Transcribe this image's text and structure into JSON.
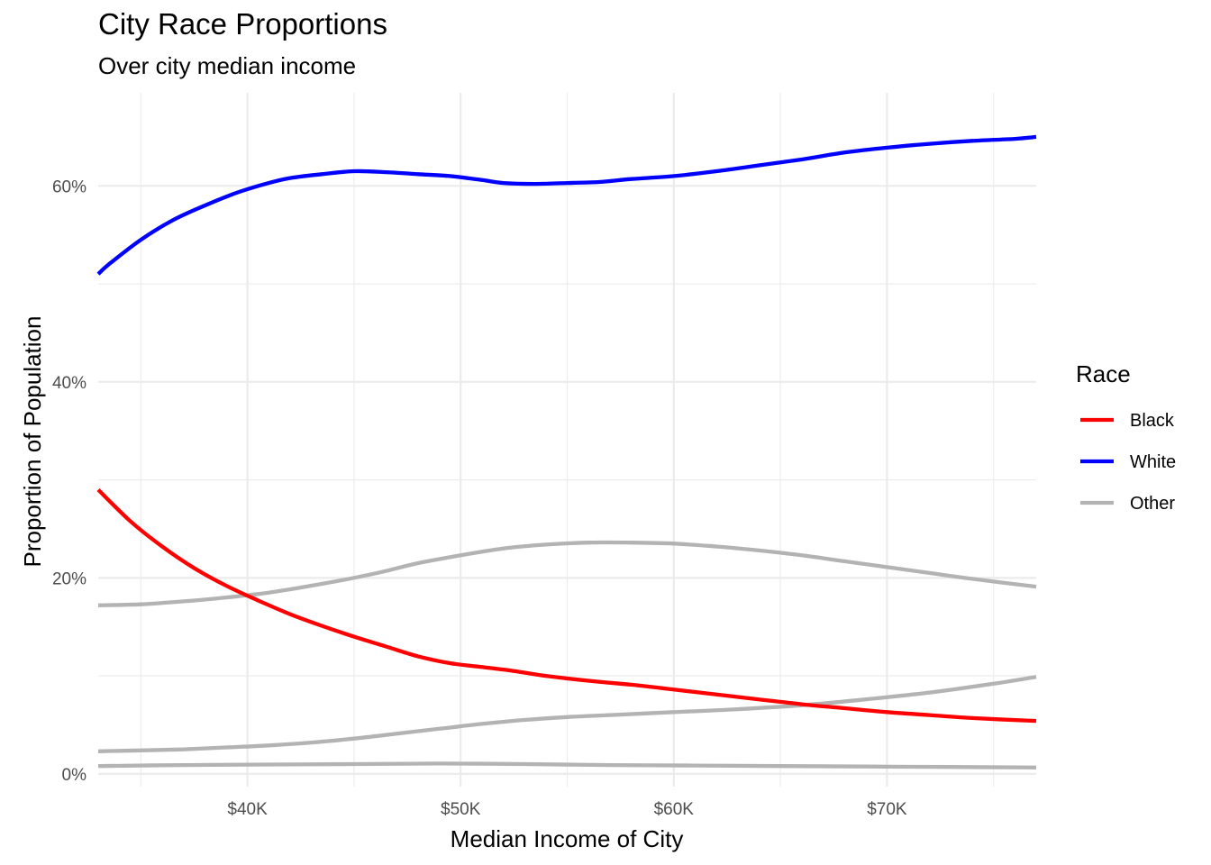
{
  "chart_data": {
    "type": "line",
    "title": "City Race Proportions",
    "subtitle": "Over city median income",
    "xlabel": "Median Income of City",
    "ylabel": "Proportion of Population",
    "xlim": [
      33000,
      77000
    ],
    "ylim": [
      -1.3,
      69.5
    ],
    "x_ticks": [
      40000,
      50000,
      60000,
      70000
    ],
    "x_tick_labels": [
      "$40K",
      "$50K",
      "$60K",
      "$70K"
    ],
    "y_ticks": [
      0,
      20,
      40,
      60
    ],
    "y_tick_labels": [
      "0%",
      "20%",
      "40%",
      "60%"
    ],
    "grid": true,
    "legend": {
      "title": "Race",
      "position": "right"
    },
    "colors": {
      "Black": "#ff0000",
      "White": "#0000ff",
      "Other": "#b3b3b3"
    },
    "series": [
      {
        "name": "White",
        "color": "#0000ff",
        "points": [
          [
            33000,
            51.0
          ],
          [
            33500,
            52.0
          ],
          [
            35000,
            54.5
          ],
          [
            36500,
            56.5
          ],
          [
            38000,
            58.0
          ],
          [
            39500,
            59.3
          ],
          [
            41000,
            60.3
          ],
          [
            42000,
            60.8
          ],
          [
            43500,
            61.2
          ],
          [
            45000,
            61.5
          ],
          [
            46500,
            61.4
          ],
          [
            48000,
            61.2
          ],
          [
            49500,
            61.0
          ],
          [
            51000,
            60.6
          ],
          [
            52000,
            60.3
          ],
          [
            53500,
            60.2
          ],
          [
            55000,
            60.3
          ],
          [
            56500,
            60.4
          ],
          [
            58000,
            60.7
          ],
          [
            60000,
            61.0
          ],
          [
            62000,
            61.5
          ],
          [
            64000,
            62.1
          ],
          [
            66000,
            62.7
          ],
          [
            68000,
            63.4
          ],
          [
            70000,
            63.9
          ],
          [
            72000,
            64.3
          ],
          [
            74000,
            64.6
          ],
          [
            76000,
            64.8
          ],
          [
            77000,
            65.0
          ]
        ]
      },
      {
        "name": "Black",
        "color": "#ff0000",
        "points": [
          [
            33000,
            29.0
          ],
          [
            34500,
            25.8
          ],
          [
            36000,
            23.2
          ],
          [
            37500,
            21.0
          ],
          [
            39000,
            19.2
          ],
          [
            40500,
            17.7
          ],
          [
            42000,
            16.3
          ],
          [
            43500,
            15.1
          ],
          [
            45000,
            14.0
          ],
          [
            46500,
            13.0
          ],
          [
            48000,
            12.0
          ],
          [
            49500,
            11.3
          ],
          [
            51000,
            10.9
          ],
          [
            52500,
            10.5
          ],
          [
            54000,
            10.0
          ],
          [
            56000,
            9.5
          ],
          [
            58000,
            9.1
          ],
          [
            60000,
            8.6
          ],
          [
            62000,
            8.1
          ],
          [
            64000,
            7.6
          ],
          [
            66000,
            7.1
          ],
          [
            68000,
            6.7
          ],
          [
            70000,
            6.3
          ],
          [
            72000,
            6.0
          ],
          [
            74000,
            5.7
          ],
          [
            77000,
            5.4
          ]
        ]
      },
      {
        "color": "#b3b3b3",
        "points": [
          [
            33000,
            17.2
          ],
          [
            35000,
            17.3
          ],
          [
            37000,
            17.6
          ],
          [
            39000,
            18.0
          ],
          [
            41000,
            18.5
          ],
          [
            43000,
            19.2
          ],
          [
            45000,
            20.0
          ],
          [
            46500,
            20.7
          ],
          [
            48000,
            21.5
          ],
          [
            50000,
            22.3
          ],
          [
            52000,
            23.0
          ],
          [
            54000,
            23.4
          ],
          [
            56000,
            23.6
          ],
          [
            58000,
            23.6
          ],
          [
            60000,
            23.5
          ],
          [
            62000,
            23.2
          ],
          [
            64000,
            22.8
          ],
          [
            66000,
            22.3
          ],
          [
            68000,
            21.7
          ],
          [
            70000,
            21.1
          ],
          [
            72000,
            20.5
          ],
          [
            74000,
            19.9
          ],
          [
            77000,
            19.1
          ]
        ]
      },
      {
        "color": "#b3b3b3",
        "points": [
          [
            33000,
            2.3
          ],
          [
            35000,
            2.4
          ],
          [
            37000,
            2.5
          ],
          [
            39000,
            2.7
          ],
          [
            41000,
            2.9
          ],
          [
            43000,
            3.2
          ],
          [
            45000,
            3.6
          ],
          [
            47000,
            4.1
          ],
          [
            49000,
            4.6
          ],
          [
            51000,
            5.1
          ],
          [
            53000,
            5.5
          ],
          [
            55000,
            5.8
          ],
          [
            57000,
            6.0
          ],
          [
            60000,
            6.3
          ],
          [
            63000,
            6.6
          ],
          [
            66000,
            7.0
          ],
          [
            69000,
            7.6
          ],
          [
            72000,
            8.3
          ],
          [
            75000,
            9.2
          ],
          [
            77000,
            9.9
          ]
        ]
      },
      {
        "color": "#b3b3b3",
        "points": [
          [
            33000,
            0.8
          ],
          [
            37000,
            0.9
          ],
          [
            41000,
            0.95
          ],
          [
            45000,
            1.0
          ],
          [
            49000,
            1.05
          ],
          [
            53000,
            1.0
          ],
          [
            57000,
            0.9
          ],
          [
            61000,
            0.85
          ],
          [
            65000,
            0.8
          ],
          [
            69000,
            0.75
          ],
          [
            73000,
            0.7
          ],
          [
            77000,
            0.65
          ]
        ]
      }
    ]
  }
}
